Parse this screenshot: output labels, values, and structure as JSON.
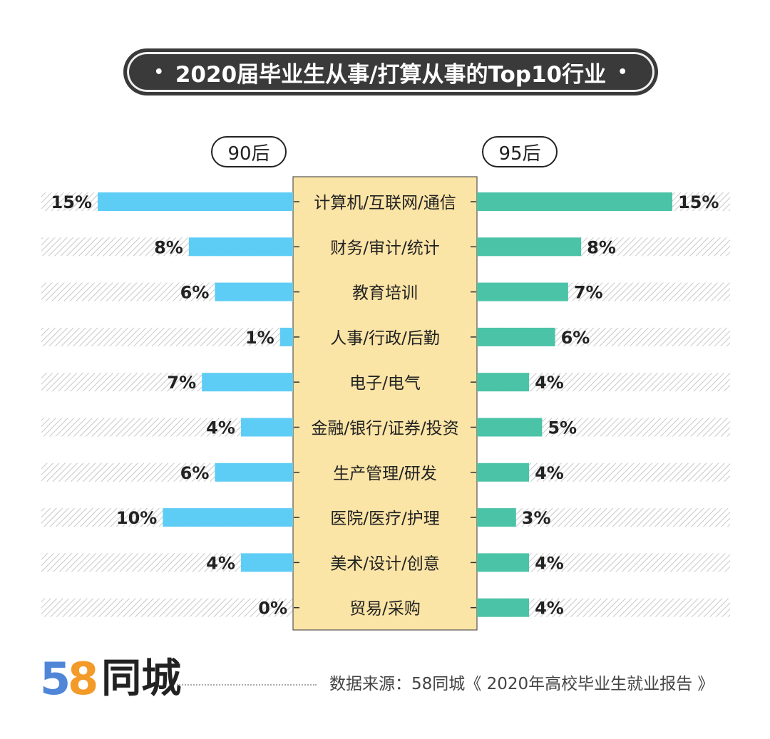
{
  "title": "2020届毕业生从事/打算从事的Top10行业",
  "title_dot": "•",
  "groups": {
    "left": "90后",
    "right": "95后"
  },
  "colors": {
    "left_bar": "#5ecdf5",
    "right_bar": "#4bc3a7",
    "center_band": "#fae4a6",
    "title_bg": "#3a3a3a"
  },
  "chart_data": {
    "type": "bar",
    "orientation": "horizontal-diverging",
    "categories": [
      "计算机/互联网/通信",
      "财务/审计/统计",
      "教育培训",
      "人事/行政/后勤",
      "电子/电气",
      "金融/银行/证券/投资",
      "生产管理/研发",
      "医院/医疗/护理",
      "美术/设计/创意",
      "贸易/采购"
    ],
    "series": [
      {
        "name": "90后",
        "values": [
          15,
          8,
          6,
          1,
          7,
          4,
          6,
          10,
          4,
          0
        ],
        "labels": [
          "15%",
          "8%",
          "6%",
          "1%",
          "7%",
          "4%",
          "6%",
          "10%",
          "4%",
          "0%"
        ]
      },
      {
        "name": "95后",
        "values": [
          15,
          8,
          7,
          6,
          4,
          5,
          4,
          3,
          4,
          4
        ],
        "labels": [
          "15%",
          "8%",
          "7%",
          "6%",
          "4%",
          "5%",
          "4%",
          "3%",
          "4%",
          "4%"
        ]
      }
    ],
    "unit": "%",
    "xlim": [
      0,
      15
    ]
  },
  "footer": {
    "logo_num_5": "5",
    "logo_num_8": "8",
    "logo_text": "同城",
    "source": "数据来源：58同城《 2020年高校毕业生就业报告 》"
  }
}
